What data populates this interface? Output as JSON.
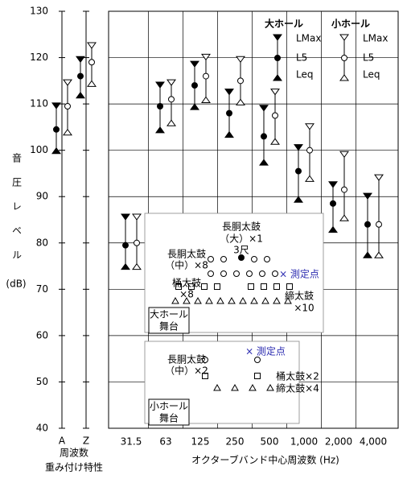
{
  "chart_data": {
    "type": "errorbar",
    "categories": [
      "A",
      "Z",
      "31.5",
      "63",
      "125",
      "250",
      "500",
      "1,000",
      "2,000",
      "4,000"
    ],
    "measures": [
      "LMax",
      "L5",
      "Leq"
    ],
    "series": [
      {
        "name": "大ホール",
        "color": "#000000",
        "filled": true,
        "lmax": [
          109,
          119,
          85,
          113.5,
          118,
          112,
          108.5,
          100,
          92,
          89.5
        ],
        "l5": [
          104.5,
          116,
          79.5,
          109.5,
          114,
          108,
          103,
          95.5,
          88.5,
          84
        ],
        "leq": [
          100.5,
          112.5,
          75.5,
          105,
          110,
          104,
          98,
          90,
          83.5,
          78
        ]
      },
      {
        "name": "小ホール",
        "color": "#000000",
        "filled": false,
        "lmax": [
          114,
          122,
          85,
          114,
          119.5,
          119,
          112,
          104.5,
          98.5,
          93.5
        ],
        "l5": [
          109.5,
          119,
          80,
          111,
          116,
          115,
          107.5,
          100,
          91.5,
          84
        ],
        "leq": [
          104.5,
          115,
          75.5,
          106.5,
          111.5,
          111,
          102.5,
          94.5,
          86,
          78
        ]
      }
    ],
    "ylim": [
      40,
      130
    ],
    "yticks": [
      40,
      50,
      60,
      70,
      80,
      90,
      100,
      110,
      120,
      130
    ],
    "grid": true,
    "ylabel": "音圧レベル",
    "yunit": "(dB)",
    "xlabel": "オクターブバンド中心周波数 (Hz)",
    "weighting_label": [
      "周波数",
      "重み付け特性"
    ],
    "annotations": [
      "長胴太鼓",
      "（大）×1",
      "3尺",
      "長胴太鼓",
      "（中）×8",
      "桶太鼓",
      "×8",
      "締太鼓",
      "×10",
      "× 測定点",
      "大ホール",
      "舞台",
      "× 測定点",
      "長胴太鼓",
      "（中）×2",
      "桶太鼓×2",
      "締太鼓×4",
      "小ホール",
      "舞台"
    ]
  }
}
